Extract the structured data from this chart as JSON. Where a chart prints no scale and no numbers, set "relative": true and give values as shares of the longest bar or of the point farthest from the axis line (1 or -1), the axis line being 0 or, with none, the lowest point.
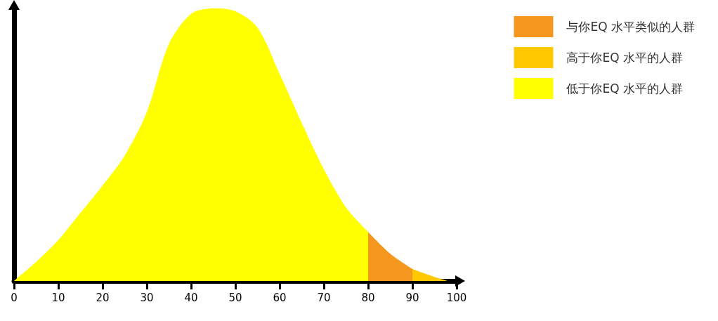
{
  "chart_data": {
    "type": "area",
    "relative": true,
    "legend": "top right",
    "xlim": [
      0,
      100
    ],
    "xticks": [
      0,
      10,
      20,
      30,
      40,
      50,
      60,
      70,
      80,
      90,
      100
    ],
    "grid": false,
    "marker": "none",
    "series": [
      {
        "name": "与你EQ 水平类似的人群",
        "color": "#f5961e",
        "x": [
          80,
          85,
          90
        ],
        "values": [
          0.18,
          0.1,
          0.044
        ]
      },
      {
        "name": "高于你EQ 水平的人群",
        "color": "#ffc800",
        "x": [
          90,
          95,
          98
        ],
        "values": [
          0.044,
          0.015,
          0
        ]
      },
      {
        "name": "低于你EQ 水平的人群",
        "color": "#ffff00",
        "x": [
          0,
          5,
          10,
          15,
          20,
          25,
          30,
          35,
          40,
          45,
          50,
          55,
          60,
          65,
          70,
          75,
          80
        ],
        "values": [
          0,
          0.07,
          0.15,
          0.25,
          0.35,
          0.46,
          0.62,
          0.87,
          0.98,
          1,
          0.99,
          0.93,
          0.76,
          0.58,
          0.41,
          0.27,
          0.18
        ]
      }
    ]
  }
}
